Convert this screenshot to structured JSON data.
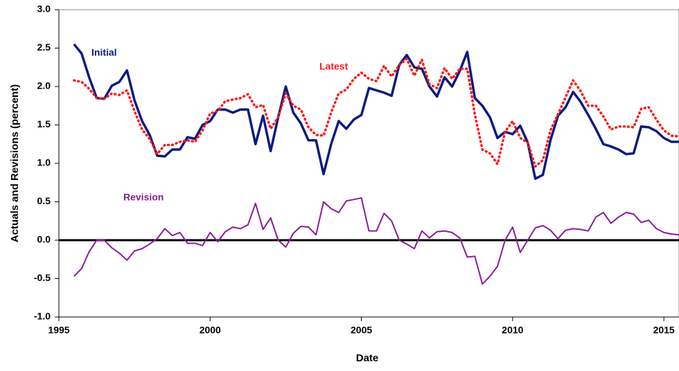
{
  "chart_data": {
    "type": "line",
    "x_label": "Date",
    "y_label": "Actuals and Revisions (percent)",
    "x": [
      1995.5,
      1995.75,
      1996,
      1996.25,
      1996.5,
      1996.75,
      1997,
      1997.25,
      1997.5,
      1997.75,
      1998,
      1998.25,
      1998.5,
      1998.75,
      1999,
      1999.25,
      1999.5,
      1999.75,
      2000,
      2000.25,
      2000.5,
      2000.75,
      2001,
      2001.25,
      2001.5,
      2001.75,
      2002,
      2002.25,
      2002.5,
      2002.75,
      2003,
      2003.25,
      2003.5,
      2003.75,
      2004,
      2004.25,
      2004.5,
      2004.75,
      2005,
      2005.25,
      2005.5,
      2005.75,
      2006,
      2006.25,
      2006.5,
      2006.75,
      2007,
      2007.25,
      2007.5,
      2007.75,
      2008,
      2008.25,
      2008.5,
      2008.75,
      2009,
      2009.25,
      2009.5,
      2009.75,
      2010,
      2010.25,
      2010.5,
      2010.75,
      2011,
      2011.25,
      2011.5,
      2011.75,
      2012,
      2012.25,
      2012.5,
      2012.75,
      2013,
      2013.25,
      2013.5,
      2013.75,
      2014,
      2014.25,
      2014.5,
      2014.75,
      2015,
      2015.25,
      2015.5
    ],
    "series": [
      {
        "name": "Initial",
        "color": "#0a1a80",
        "style": "solid",
        "values": [
          2.55,
          2.43,
          2.12,
          1.85,
          1.84,
          2.01,
          2.06,
          2.21,
          1.82,
          1.55,
          1.37,
          1.1,
          1.09,
          1.18,
          1.18,
          1.34,
          1.32,
          1.5,
          1.55,
          1.7,
          1.7,
          1.66,
          1.7,
          1.7,
          1.25,
          1.62,
          1.16,
          1.6,
          2.0,
          1.66,
          1.52,
          1.3,
          1.3,
          0.86,
          1.25,
          1.55,
          1.45,
          1.57,
          1.63,
          1.98,
          1.95,
          1.92,
          1.88,
          2.28,
          2.41,
          2.25,
          2.23,
          2.0,
          1.87,
          2.12,
          2.0,
          2.2,
          2.45,
          1.85,
          1.75,
          1.6,
          1.33,
          1.41,
          1.38,
          1.49,
          1.27,
          0.8,
          0.85,
          1.3,
          1.62,
          1.73,
          1.93,
          1.8,
          1.63,
          1.45,
          1.25,
          1.22,
          1.18,
          1.12,
          1.13,
          1.48,
          1.47,
          1.42,
          1.33,
          1.28,
          1.28
        ]
      },
      {
        "name": "Latest",
        "color": "#ff1a1a",
        "style": "dotted",
        "values": [
          2.08,
          2.06,
          1.97,
          1.85,
          1.84,
          1.91,
          1.89,
          1.95,
          1.68,
          1.44,
          1.32,
          1.12,
          1.24,
          1.24,
          1.28,
          1.3,
          1.28,
          1.43,
          1.65,
          1.68,
          1.81,
          1.83,
          1.85,
          1.9,
          1.73,
          1.76,
          1.45,
          1.6,
          1.91,
          1.75,
          1.7,
          1.47,
          1.37,
          1.36,
          1.66,
          1.91,
          1.96,
          2.1,
          2.18,
          2.1,
          2.07,
          2.27,
          2.13,
          2.28,
          2.36,
          2.14,
          2.35,
          2.03,
          1.98,
          2.24,
          2.1,
          2.23,
          2.23,
          1.64,
          1.18,
          1.13,
          0.99,
          1.41,
          1.55,
          1.33,
          1.27,
          0.96,
          1.04,
          1.43,
          1.64,
          1.86,
          2.08,
          1.94,
          1.75,
          1.75,
          1.61,
          1.44,
          1.48,
          1.48,
          1.47,
          1.71,
          1.73,
          1.57,
          1.43,
          1.36,
          1.35
        ]
      },
      {
        "name": "Revision",
        "color": "#8b1a9a",
        "style": "solid",
        "values": [
          -0.47,
          -0.37,
          -0.15,
          0,
          0,
          -0.1,
          -0.17,
          -0.26,
          -0.14,
          -0.11,
          -0.05,
          0.02,
          0.15,
          0.06,
          0.1,
          -0.04,
          -0.04,
          -0.07,
          0.1,
          -0.02,
          0.11,
          0.17,
          0.15,
          0.2,
          0.48,
          0.14,
          0.29,
          0,
          -0.09,
          0.09,
          0.18,
          0.17,
          0.07,
          0.5,
          0.41,
          0.36,
          0.51,
          0.53,
          0.55,
          0.12,
          0.12,
          0.35,
          0.25,
          0,
          -0.05,
          -0.11,
          0.12,
          0.03,
          0.11,
          0.12,
          0.1,
          0.03,
          -0.22,
          -0.21,
          -0.57,
          -0.47,
          -0.34,
          0,
          0.17,
          -0.16,
          0,
          0.16,
          0.19,
          0.13,
          0.02,
          0.13,
          0.15,
          0.14,
          0.12,
          0.3,
          0.36,
          0.22,
          0.3,
          0.36,
          0.34,
          0.23,
          0.26,
          0.15,
          0.1,
          0.08,
          0.07
        ]
      }
    ],
    "xlim": [
      1995,
      2015.5
    ],
    "xticks": [
      1995,
      2000,
      2005,
      2010,
      2015
    ],
    "ylim": [
      -1,
      3
    ],
    "yticks": [
      {
        "value": -1,
        "label": "-1.0"
      },
      -0.5,
      {
        "value": 0,
        "label": "0.0"
      },
      0.5,
      {
        "value": 1,
        "label": "1.0"
      },
      1.5,
      {
        "value": 2,
        "label": "2.0"
      },
      2.5,
      {
        "value": 3,
        "label": "3.0"
      }
    ],
    "zero_line": true,
    "grid": false
  }
}
